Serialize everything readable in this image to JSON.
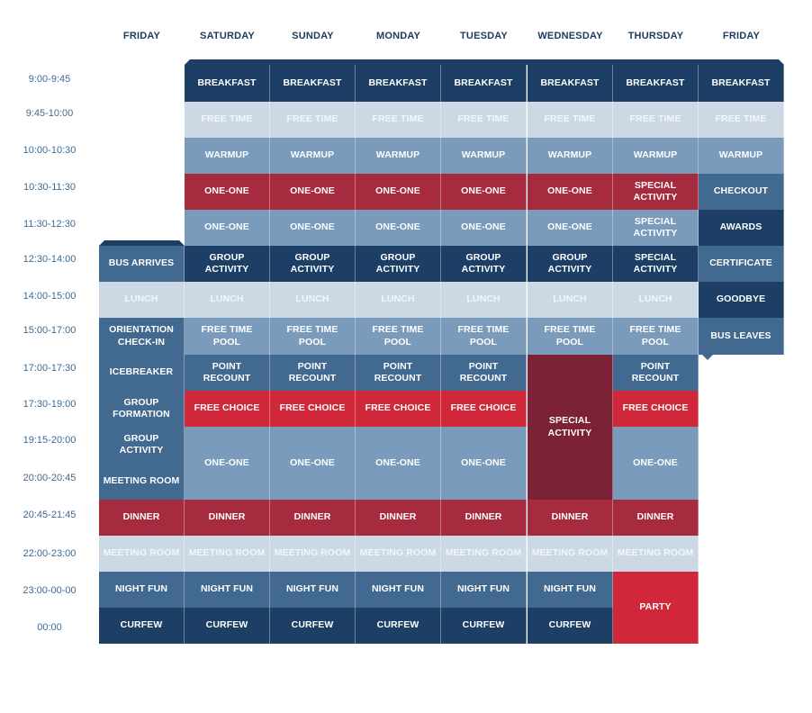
{
  "colors": {
    "navy": "#1d3f66",
    "steel": "#42698f",
    "medium": "#7a9bbb",
    "pale": "#ccd9e5",
    "red": "#a72b3e",
    "bright_red": "#d0283a",
    "maroon": "#7c2237"
  },
  "days": [
    "FRIDAY",
    "SATURDAY",
    "SUNDAY",
    "MONDAY",
    "TUESDAY",
    "WEDNESDAY",
    "THURSDAY",
    "FRIDAY"
  ],
  "times": [
    "9:00-9:45",
    "9:45-10:00",
    "10:00-10:30",
    "10:30-11:30",
    "11:30-12:30",
    "12:30-14:00",
    "14:00-15:00",
    "15:00-17:00",
    "17:00-17:30",
    "17:30-19:00",
    "19:15-20:00",
    "20:00-20:45",
    "20:45-21:45",
    "22:00-23:00",
    "23:00-00-00",
    "00:00"
  ],
  "cells": [
    {
      "col": 1,
      "row": 0,
      "span": 1,
      "label": "BREAKFAST",
      "color": "navy"
    },
    {
      "col": 2,
      "row": 0,
      "span": 1,
      "label": "BREAKFAST",
      "color": "navy"
    },
    {
      "col": 3,
      "row": 0,
      "span": 1,
      "label": "BREAKFAST",
      "color": "navy"
    },
    {
      "col": 4,
      "row": 0,
      "span": 1,
      "label": "BREAKFAST",
      "color": "navy"
    },
    {
      "col": 5,
      "row": 0,
      "span": 1,
      "label": "BREAKFAST",
      "color": "navy"
    },
    {
      "col": 6,
      "row": 0,
      "span": 1,
      "label": "BREAKFAST",
      "color": "navy"
    },
    {
      "col": 7,
      "row": 0,
      "span": 1,
      "label": "BREAKFAST",
      "color": "navy"
    },
    {
      "col": 1,
      "row": 1,
      "span": 1,
      "label": "FREE TIME",
      "color": "pale"
    },
    {
      "col": 2,
      "row": 1,
      "span": 1,
      "label": "FREE TIME",
      "color": "pale"
    },
    {
      "col": 3,
      "row": 1,
      "span": 1,
      "label": "FREE TIME",
      "color": "pale"
    },
    {
      "col": 4,
      "row": 1,
      "span": 1,
      "label": "FREE TIME",
      "color": "pale"
    },
    {
      "col": 5,
      "row": 1,
      "span": 1,
      "label": "FREE TIME",
      "color": "pale"
    },
    {
      "col": 6,
      "row": 1,
      "span": 1,
      "label": "FREE TIME",
      "color": "pale"
    },
    {
      "col": 7,
      "row": 1,
      "span": 1,
      "label": "FREE TIME",
      "color": "pale"
    },
    {
      "col": 1,
      "row": 2,
      "span": 1,
      "label": "WARMUP",
      "color": "medium"
    },
    {
      "col": 2,
      "row": 2,
      "span": 1,
      "label": "WARMUP",
      "color": "medium"
    },
    {
      "col": 3,
      "row": 2,
      "span": 1,
      "label": "WARMUP",
      "color": "medium"
    },
    {
      "col": 4,
      "row": 2,
      "span": 1,
      "label": "WARMUP",
      "color": "medium"
    },
    {
      "col": 5,
      "row": 2,
      "span": 1,
      "label": "WARMUP",
      "color": "medium"
    },
    {
      "col": 6,
      "row": 2,
      "span": 1,
      "label": "WARMUP",
      "color": "medium"
    },
    {
      "col": 7,
      "row": 2,
      "span": 1,
      "label": "WARMUP",
      "color": "medium"
    },
    {
      "col": 1,
      "row": 3,
      "span": 1,
      "label": "ONE-ONE",
      "color": "red"
    },
    {
      "col": 2,
      "row": 3,
      "span": 1,
      "label": "ONE-ONE",
      "color": "red"
    },
    {
      "col": 3,
      "row": 3,
      "span": 1,
      "label": "ONE-ONE",
      "color": "red"
    },
    {
      "col": 4,
      "row": 3,
      "span": 1,
      "label": "ONE-ONE",
      "color": "red"
    },
    {
      "col": 5,
      "row": 3,
      "span": 1,
      "label": "ONE-ONE",
      "color": "red"
    },
    {
      "col": 6,
      "row": 3,
      "span": 1,
      "label": "SPECIAL ACTIVITY",
      "color": "red"
    },
    {
      "col": 7,
      "row": 3,
      "span": 1,
      "label": "CHECKOUT",
      "color": "steel"
    },
    {
      "col": 1,
      "row": 4,
      "span": 1,
      "label": "ONE-ONE",
      "color": "medium"
    },
    {
      "col": 2,
      "row": 4,
      "span": 1,
      "label": "ONE-ONE",
      "color": "medium"
    },
    {
      "col": 3,
      "row": 4,
      "span": 1,
      "label": "ONE-ONE",
      "color": "medium"
    },
    {
      "col": 4,
      "row": 4,
      "span": 1,
      "label": "ONE-ONE",
      "color": "medium"
    },
    {
      "col": 5,
      "row": 4,
      "span": 1,
      "label": "ONE-ONE",
      "color": "medium"
    },
    {
      "col": 6,
      "row": 4,
      "span": 1,
      "label": "SPECIAL ACTIVITY",
      "color": "medium"
    },
    {
      "col": 7,
      "row": 4,
      "span": 1,
      "label": "AWARDS",
      "color": "navy"
    },
    {
      "col": 0,
      "row": 5,
      "span": 1,
      "label": "BUS ARRIVES",
      "color": "steel"
    },
    {
      "col": 1,
      "row": 5,
      "span": 1,
      "label": "GROUP ACTIVITY",
      "color": "navy"
    },
    {
      "col": 2,
      "row": 5,
      "span": 1,
      "label": "GROUP ACTIVITY",
      "color": "navy"
    },
    {
      "col": 3,
      "row": 5,
      "span": 1,
      "label": "GROUP ACTIVITY",
      "color": "navy"
    },
    {
      "col": 4,
      "row": 5,
      "span": 1,
      "label": "GROUP ACTIVITY",
      "color": "navy"
    },
    {
      "col": 5,
      "row": 5,
      "span": 1,
      "label": "GROUP ACTIVITY",
      "color": "navy"
    },
    {
      "col": 6,
      "row": 5,
      "span": 1,
      "label": "SPECIAL ACTIVITY",
      "color": "navy"
    },
    {
      "col": 7,
      "row": 5,
      "span": 1,
      "label": "CERTIFICATE",
      "color": "steel"
    },
    {
      "col": 0,
      "row": 6,
      "span": 1,
      "label": "LUNCH",
      "color": "pale"
    },
    {
      "col": 1,
      "row": 6,
      "span": 1,
      "label": "LUNCH",
      "color": "pale"
    },
    {
      "col": 2,
      "row": 6,
      "span": 1,
      "label": "LUNCH",
      "color": "pale"
    },
    {
      "col": 3,
      "row": 6,
      "span": 1,
      "label": "LUNCH",
      "color": "pale"
    },
    {
      "col": 4,
      "row": 6,
      "span": 1,
      "label": "LUNCH",
      "color": "pale"
    },
    {
      "col": 5,
      "row": 6,
      "span": 1,
      "label": "LUNCH",
      "color": "pale"
    },
    {
      "col": 6,
      "row": 6,
      "span": 1,
      "label": "LUNCH",
      "color": "pale"
    },
    {
      "col": 7,
      "row": 6,
      "span": 1,
      "label": "GOODBYE",
      "color": "navy"
    },
    {
      "col": 0,
      "row": 7,
      "span": 1,
      "label": "ORIENTATION\nCHECK-IN",
      "color": "steel"
    },
    {
      "col": 1,
      "row": 7,
      "span": 1,
      "label": "FREE TIME\nPOOL",
      "color": "medium"
    },
    {
      "col": 2,
      "row": 7,
      "span": 1,
      "label": "FREE TIME\nPOOL",
      "color": "medium"
    },
    {
      "col": 3,
      "row": 7,
      "span": 1,
      "label": "FREE TIME\nPOOL",
      "color": "medium"
    },
    {
      "col": 4,
      "row": 7,
      "span": 1,
      "label": "FREE TIME\nPOOL",
      "color": "medium"
    },
    {
      "col": 5,
      "row": 7,
      "span": 1,
      "label": "FREE TIME\nPOOL",
      "color": "medium"
    },
    {
      "col": 6,
      "row": 7,
      "span": 1,
      "label": "FREE TIME\nPOOL",
      "color": "medium"
    },
    {
      "col": 7,
      "row": 7,
      "span": 1,
      "label": "BUS LEAVES",
      "color": "steel"
    },
    {
      "col": 0,
      "row": 8,
      "span": 1,
      "label": "ICEBREAKER",
      "color": "steel"
    },
    {
      "col": 1,
      "row": 8,
      "span": 1,
      "label": "POINT RECOUNT",
      "color": "steel"
    },
    {
      "col": 2,
      "row": 8,
      "span": 1,
      "label": "POINT RECOUNT",
      "color": "steel"
    },
    {
      "col": 3,
      "row": 8,
      "span": 1,
      "label": "POINT RECOUNT",
      "color": "steel"
    },
    {
      "col": 4,
      "row": 8,
      "span": 1,
      "label": "POINT RECOUNT",
      "color": "steel"
    },
    {
      "col": 5,
      "row": 8,
      "span": 4,
      "label": "SPECIAL ACTIVITY",
      "color": "maroon"
    },
    {
      "col": 6,
      "row": 8,
      "span": 1,
      "label": "POINT RECOUNT",
      "color": "steel"
    },
    {
      "col": 0,
      "row": 9,
      "span": 1,
      "label": "GROUP FORMATION",
      "color": "steel"
    },
    {
      "col": 1,
      "row": 9,
      "span": 1,
      "label": "FREE CHOICE",
      "color": "bright_red"
    },
    {
      "col": 2,
      "row": 9,
      "span": 1,
      "label": "FREE CHOICE",
      "color": "bright_red"
    },
    {
      "col": 3,
      "row": 9,
      "span": 1,
      "label": "FREE CHOICE",
      "color": "bright_red"
    },
    {
      "col": 4,
      "row": 9,
      "span": 1,
      "label": "FREE CHOICE",
      "color": "bright_red"
    },
    {
      "col": 6,
      "row": 9,
      "span": 1,
      "label": "FREE CHOICE",
      "color": "bright_red"
    },
    {
      "col": 0,
      "row": 10,
      "span": 1,
      "label": "GROUP ACTIVITY",
      "color": "steel"
    },
    {
      "col": 1,
      "row": 10,
      "span": 2,
      "label": "ONE-ONE",
      "color": "medium"
    },
    {
      "col": 2,
      "row": 10,
      "span": 2,
      "label": "ONE-ONE",
      "color": "medium"
    },
    {
      "col": 3,
      "row": 10,
      "span": 2,
      "label": "ONE-ONE",
      "color": "medium"
    },
    {
      "col": 4,
      "row": 10,
      "span": 2,
      "label": "ONE-ONE",
      "color": "medium"
    },
    {
      "col": 6,
      "row": 10,
      "span": 2,
      "label": "ONE-ONE",
      "color": "medium"
    },
    {
      "col": 0,
      "row": 11,
      "span": 1,
      "label": "MEETING ROOM",
      "color": "steel"
    },
    {
      "col": 0,
      "row": 12,
      "span": 1,
      "label": "DINNER",
      "color": "red"
    },
    {
      "col": 1,
      "row": 12,
      "span": 1,
      "label": "DINNER",
      "color": "red"
    },
    {
      "col": 2,
      "row": 12,
      "span": 1,
      "label": "DINNER",
      "color": "red"
    },
    {
      "col": 3,
      "row": 12,
      "span": 1,
      "label": "DINNER",
      "color": "red"
    },
    {
      "col": 4,
      "row": 12,
      "span": 1,
      "label": "DINNER",
      "color": "red"
    },
    {
      "col": 5,
      "row": 12,
      "span": 1,
      "label": "DINNER",
      "color": "red"
    },
    {
      "col": 6,
      "row": 12,
      "span": 1,
      "label": "DINNER",
      "color": "red"
    },
    {
      "col": 0,
      "row": 13,
      "span": 1,
      "label": "MEETING ROOM",
      "color": "pale"
    },
    {
      "col": 1,
      "row": 13,
      "span": 1,
      "label": "MEETING ROOM",
      "color": "pale"
    },
    {
      "col": 2,
      "row": 13,
      "span": 1,
      "label": "MEETING ROOM",
      "color": "pale"
    },
    {
      "col": 3,
      "row": 13,
      "span": 1,
      "label": "MEETING ROOM",
      "color": "pale"
    },
    {
      "col": 4,
      "row": 13,
      "span": 1,
      "label": "MEETING ROOM",
      "color": "pale"
    },
    {
      "col": 5,
      "row": 13,
      "span": 1,
      "label": "MEETING ROOM",
      "color": "pale"
    },
    {
      "col": 6,
      "row": 13,
      "span": 1,
      "label": "MEETING ROOM",
      "color": "pale"
    },
    {
      "col": 0,
      "row": 14,
      "span": 1,
      "label": "NIGHT FUN",
      "color": "steel"
    },
    {
      "col": 1,
      "row": 14,
      "span": 1,
      "label": "NIGHT FUN",
      "color": "steel"
    },
    {
      "col": 2,
      "row": 14,
      "span": 1,
      "label": "NIGHT FUN",
      "color": "steel"
    },
    {
      "col": 3,
      "row": 14,
      "span": 1,
      "label": "NIGHT FUN",
      "color": "steel"
    },
    {
      "col": 4,
      "row": 14,
      "span": 1,
      "label": "NIGHT FUN",
      "color": "steel"
    },
    {
      "col": 5,
      "row": 14,
      "span": 1,
      "label": "NIGHT FUN",
      "color": "steel"
    },
    {
      "col": 6,
      "row": 14,
      "span": 2,
      "label": "PARTY",
      "color": "bright_red"
    },
    {
      "col": 0,
      "row": 15,
      "span": 1,
      "label": "CURFEW",
      "color": "navy"
    },
    {
      "col": 1,
      "row": 15,
      "span": 1,
      "label": "CURFEW",
      "color": "navy"
    },
    {
      "col": 2,
      "row": 15,
      "span": 1,
      "label": "CURFEW",
      "color": "navy"
    },
    {
      "col": 3,
      "row": 15,
      "span": 1,
      "label": "CURFEW",
      "color": "navy"
    },
    {
      "col": 4,
      "row": 15,
      "span": 1,
      "label": "CURFEW",
      "color": "navy"
    },
    {
      "col": 5,
      "row": 15,
      "span": 1,
      "label": "CURFEW",
      "color": "navy"
    }
  ]
}
